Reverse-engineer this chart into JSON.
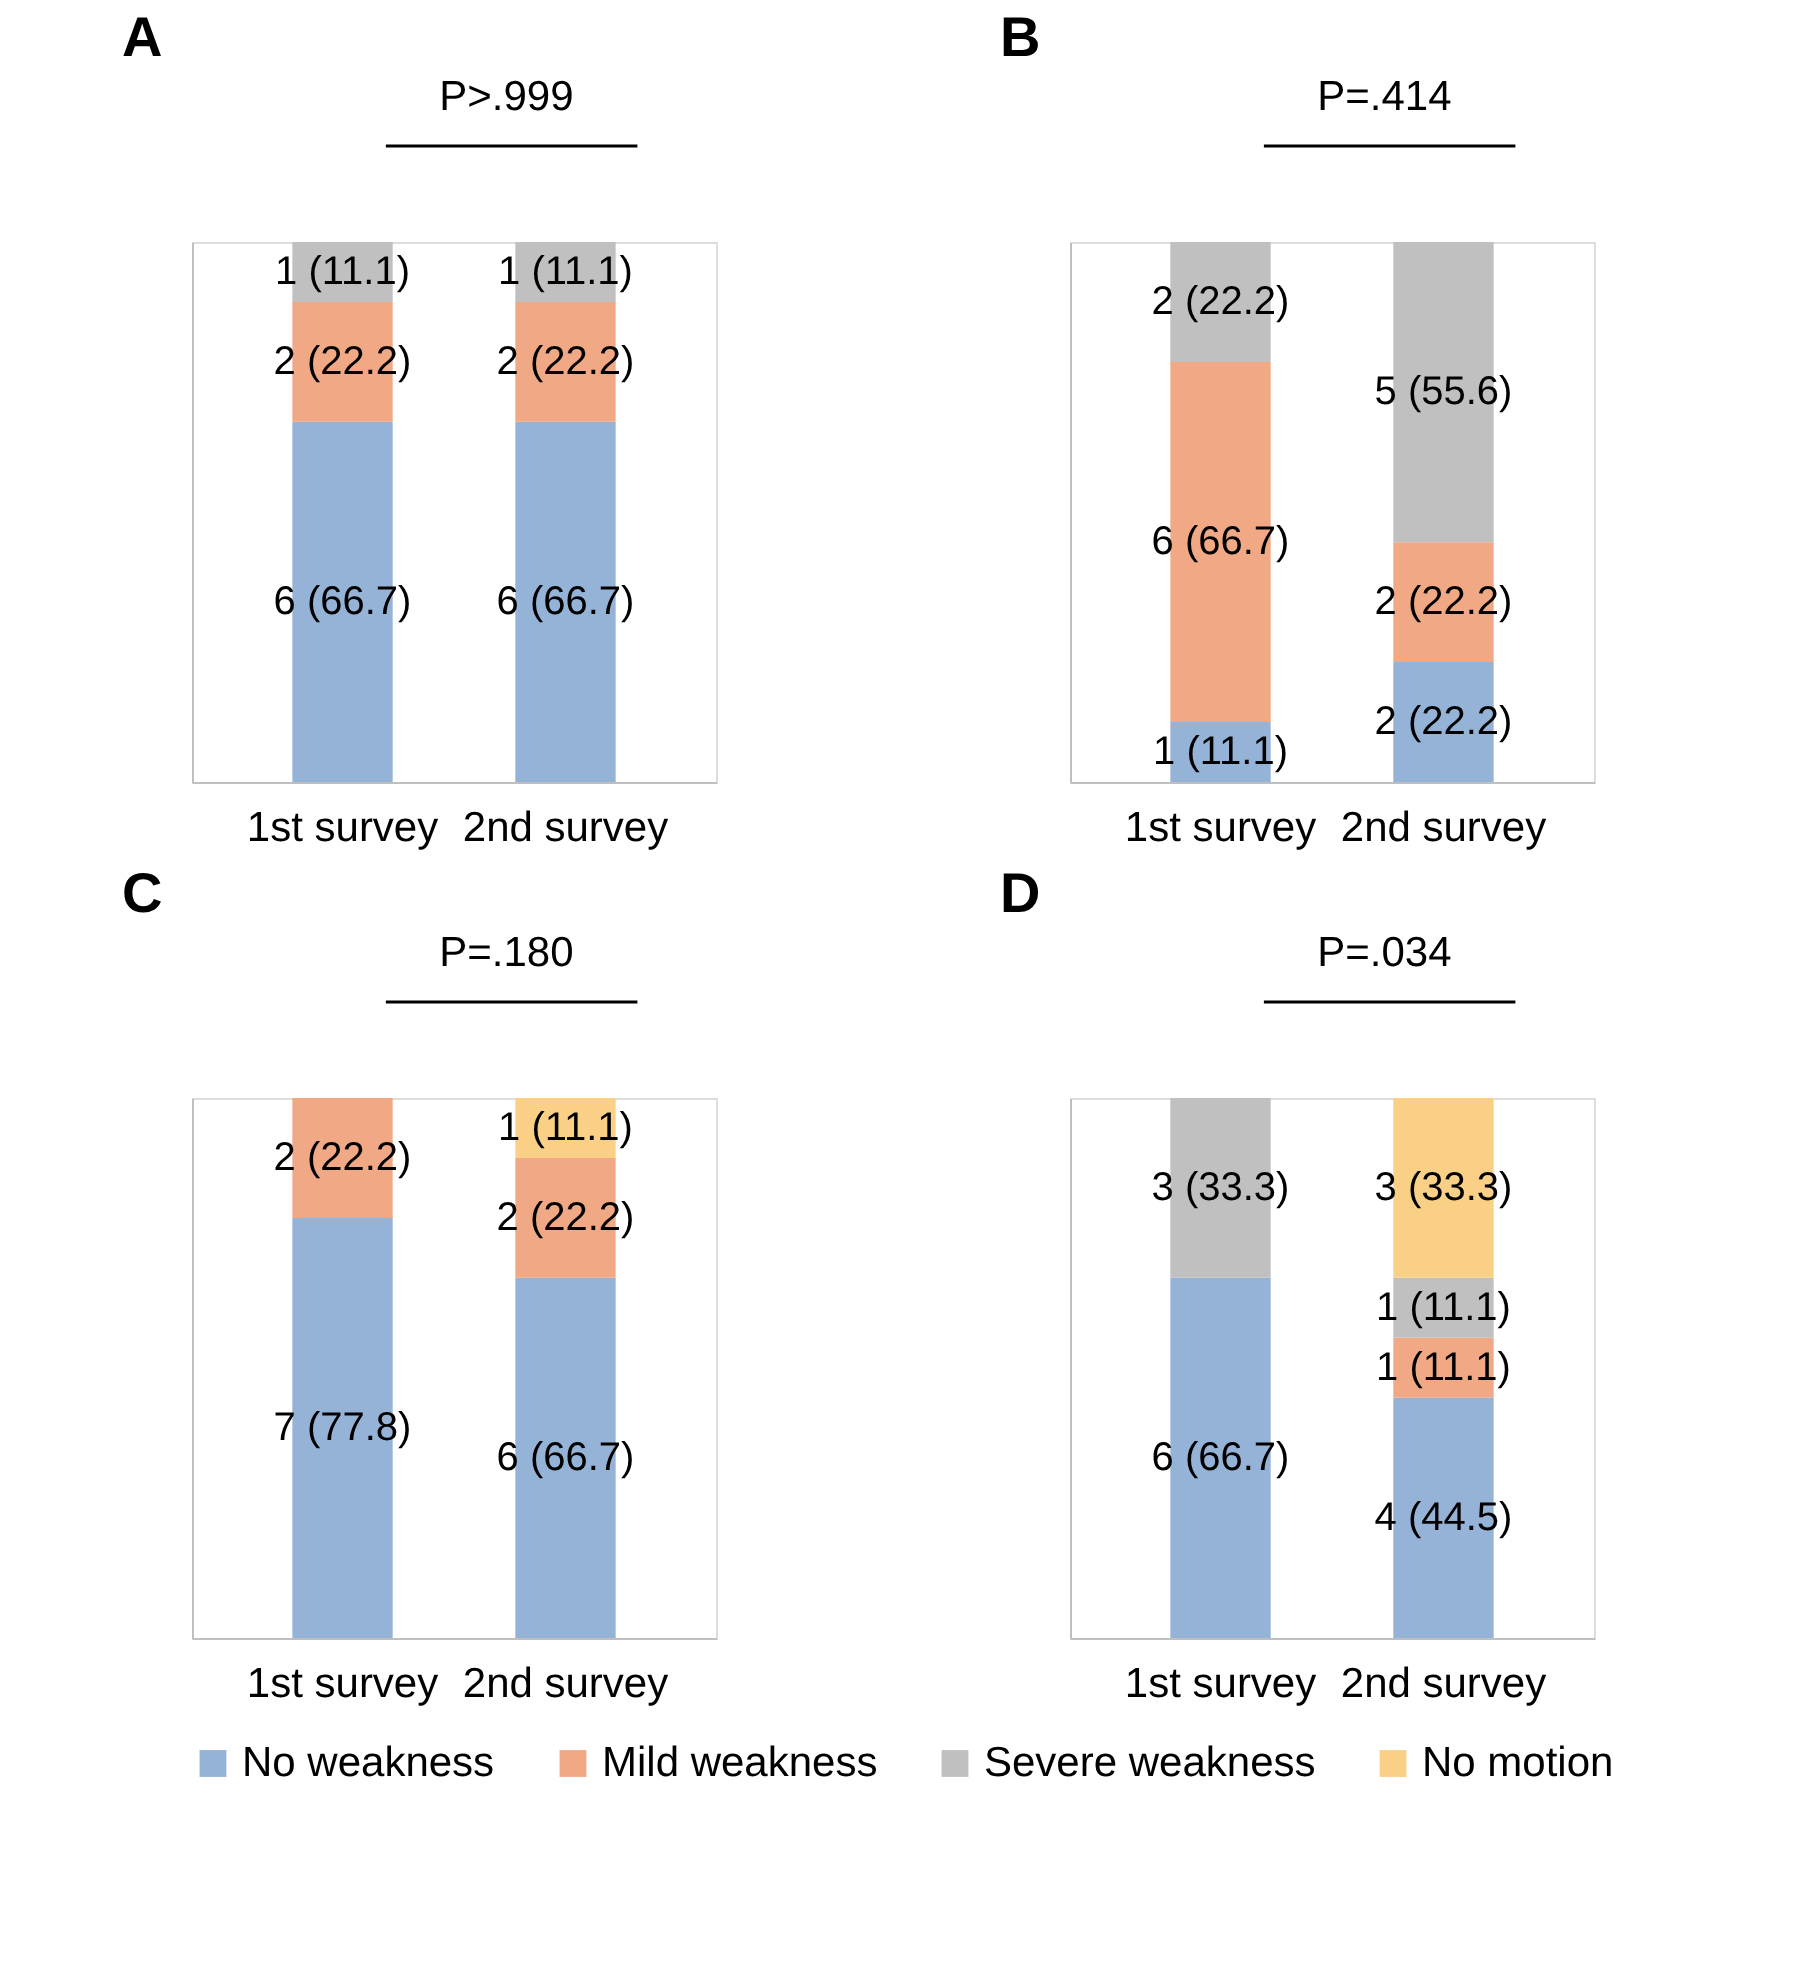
{
  "chart_data": [
    {
      "type": "bar",
      "title": "A",
      "annotations": [
        "P>.999"
      ],
      "categories": [
        "1st survey",
        "2nd survey"
      ],
      "stacked": true,
      "ylim": [
        0,
        100
      ],
      "tick_labels": "x",
      "series": [
        {
          "color": "#95b3d7",
          "values": [
            66.7,
            66.7
          ],
          "value_labels": [
            "6 (66.7)",
            "6 (66.7)"
          ]
        },
        {
          "color": "#f0a984",
          "values": [
            22.2,
            22.2
          ],
          "value_labels": [
            "2 (22.2)",
            "2 (22.2)"
          ]
        },
        {
          "color": "#c0c0c0",
          "values": [
            11.1,
            11.1
          ],
          "value_labels": [
            "1 (11.1)",
            "1 (11.1)"
          ]
        }
      ]
    },
    {
      "type": "bar",
      "title": "B",
      "annotations": [
        "P=.414"
      ],
      "categories": [
        "1st survey",
        "2nd survey"
      ],
      "stacked": true,
      "ylim": [
        0,
        100
      ],
      "tick_labels": "x",
      "series": [
        {
          "color": "#95b3d7",
          "values": [
            11.1,
            22.2
          ],
          "value_labels": [
            "1 (11.1)",
            "2 (22.2)"
          ]
        },
        {
          "color": "#f0a984",
          "values": [
            66.7,
            22.2
          ],
          "value_labels": [
            "6 (66.7)",
            "2 (22.2)"
          ]
        },
        {
          "color": "#c0c0c0",
          "values": [
            22.2,
            55.6
          ],
          "value_labels": [
            "2 (22.2)",
            "5 (55.6)"
          ]
        }
      ]
    },
    {
      "type": "bar",
      "title": "C",
      "annotations": [
        "P=.180"
      ],
      "categories": [
        "1st survey",
        "2nd survey"
      ],
      "stacked": true,
      "ylim": [
        0,
        100
      ],
      "tick_labels": "x",
      "series": [
        {
          "color": "#95b3d7",
          "values": [
            77.8,
            66.7
          ],
          "value_labels": [
            "7 (77.8)",
            "6 (66.7)"
          ]
        },
        {
          "color": "#f0a984",
          "values": [
            22.2,
            22.2
          ],
          "value_labels": [
            "2 (22.2)",
            "2 (22.2)"
          ]
        },
        {
          "color": "#f9d086",
          "values": [
            null,
            11.1
          ],
          "value_labels": [
            null,
            "1 (11.1)"
          ]
        }
      ]
    },
    {
      "type": "bar",
      "title": "D",
      "annotations": [
        "P=.034"
      ],
      "categories": [
        "1st survey",
        "2nd survey"
      ],
      "stacked": true,
      "ylim": [
        0,
        100
      ],
      "tick_labels": "x",
      "legend": "bottom",
      "series": [
        {
          "name": "No weakness",
          "color": "#95b3d7",
          "values": [
            66.7,
            44.5
          ],
          "value_labels": [
            "6 (66.7)",
            "4 (44.5)"
          ]
        },
        {
          "name": "Mild weakness",
          "color": "#f0a984",
          "values": [
            null,
            11.1
          ],
          "value_labels": [
            null,
            "1 (11.1)"
          ]
        },
        {
          "name": "Severe weakness",
          "color": "#c0c0c0",
          "values": [
            33.3,
            11.1
          ],
          "value_labels": [
            "3 (33.3)",
            "1 (11.1)"
          ]
        },
        {
          "name": "No motion",
          "color": "#f9d086",
          "values": [
            null,
            33.3
          ],
          "value_labels": [
            null,
            "3 (33.3)"
          ]
        }
      ]
    }
  ]
}
